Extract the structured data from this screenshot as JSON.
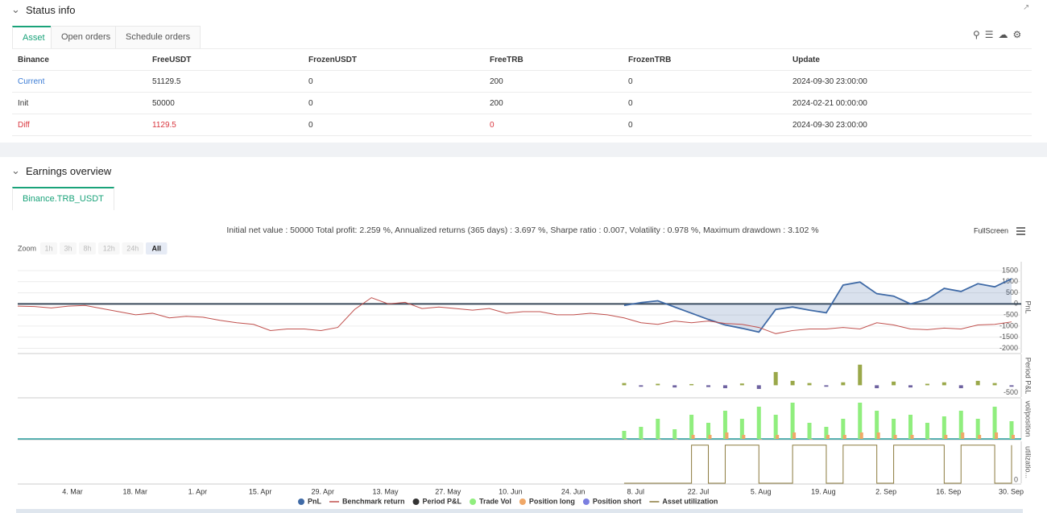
{
  "status_info": {
    "title": "Status info",
    "tabs": [
      "Asset",
      "Open orders",
      "Schedule orders"
    ],
    "table": {
      "header": [
        "Binance",
        "FreeUSDT",
        "FrozenUSDT",
        "FreeTRB",
        "FrozenTRB",
        "Update"
      ],
      "rows": [
        [
          "Current",
          "51129.5",
          "0",
          "200",
          "0",
          "2024-09-30 23:00:00"
        ],
        [
          "Init",
          "50000",
          "0",
          "200",
          "0",
          "2024-02-21 00:00:00"
        ],
        [
          "Diff",
          "1129.5",
          "0",
          "0",
          "0",
          "2024-09-30 23:00:00"
        ]
      ]
    }
  },
  "earnings": {
    "title": "Earnings overview",
    "tab": "Binance.TRB_USDT",
    "summary": "Initial net value : 50000 Total profit: 2.259 %, Annualized returns (365 days) : 3.697 %, Sharpe ratio : 0.007, Volatility : 0.978 %, Maximum drawdown : 3.102 %",
    "fullscreen": "FullScreen",
    "zoom": {
      "label": "Zoom",
      "buttons": [
        "1h",
        "3h",
        "8h",
        "12h",
        "24h",
        "All"
      ]
    },
    "x_labels": [
      "4. Mar",
      "18. Mar",
      "1. Apr",
      "15. Apr",
      "29. Apr",
      "13. May",
      "27. May",
      "10. Jun",
      "24. Jun",
      "8. Jul",
      "22. Jul",
      "5. Aug",
      "19. Aug",
      "2. Sep",
      "16. Sep",
      "30. Sep"
    ],
    "legend": [
      {
        "name": "PnL",
        "color": "#3f6aa6"
      },
      {
        "name": "Benchmark return",
        "color": "#c0504d"
      },
      {
        "name": "Period P&L",
        "color": "#333333"
      },
      {
        "name": "Trade Vol",
        "color": "#90ee7e"
      },
      {
        "name": "Position long",
        "color": "#f0a868"
      },
      {
        "name": "Position short",
        "color": "#7b7fe0"
      },
      {
        "name": "Asset utilization",
        "color": "#8b7a3e"
      }
    ],
    "chart_data": [
      {
        "type": "line",
        "y_label": "PnL",
        "ylim": [
          -2200,
          1900
        ],
        "yticks": [
          1500,
          1000,
          500,
          0,
          -500,
          -1000,
          -1500,
          -2000
        ],
        "series": [
          {
            "color": "#3f6aa6",
            "area": true,
            "values": [
              null,
              null,
              null,
              null,
              null,
              null,
              null,
              null,
              null,
              null,
              null,
              null,
              null,
              null,
              null,
              null,
              null,
              null,
              null,
              null,
              null,
              null,
              null,
              null,
              null,
              null,
              null,
              null,
              null,
              null,
              null,
              null,
              null,
              null,
              null,
              null,
              -70,
              60,
              140,
              -140,
              -420,
              -700,
              -950,
              -1100,
              -1270,
              -250,
              -140,
              -280,
              -400,
              850,
              985,
              460,
              350,
              0,
              210,
              700,
              560,
              910,
              770,
              1130
            ]
          },
          {
            "color": "#c0504d",
            "values": [
              -100,
              -120,
              -180,
              -100,
              -70,
              -210,
              -350,
              -490,
              -420,
              -630,
              -560,
              -600,
              -740,
              -850,
              -920,
              -1200,
              -1130,
              -1130,
              -1200,
              -1060,
              -250,
              280,
              0,
              70,
              -210,
              -140,
              -210,
              -280,
              -210,
              -420,
              -350,
              -350,
              -490,
              -490,
              -420,
              -490,
              -630,
              -850,
              -920,
              -770,
              -850,
              -770,
              -880,
              -920,
              -1060,
              -1340,
              -1200,
              -1130,
              -1130,
              -1060,
              -1130,
              -850,
              -950,
              -1130,
              -1160,
              -1090,
              -1130,
              -950,
              -920,
              -810
            ]
          }
        ]
      },
      {
        "type": "bar",
        "y_label": "Period P&L",
        "ylim": [
          -800,
          2100
        ],
        "yticks": [
          -500
        ],
        "series": [
          {
            "color": "#9aa84a",
            "negative_color": "#6e62a0",
            "values": [
              null,
              null,
              null,
              null,
              null,
              null,
              null,
              null,
              null,
              null,
              null,
              null,
              null,
              null,
              null,
              null,
              null,
              null,
              null,
              null,
              null,
              null,
              null,
              null,
              null,
              null,
              null,
              null,
              null,
              null,
              null,
              null,
              null,
              null,
              null,
              null,
              150,
              -100,
              100,
              -150,
              80,
              -120,
              -200,
              120,
              -250,
              900,
              300,
              150,
              -100,
              200,
              1400,
              -200,
              250,
              -150,
              100,
              200,
              -200,
              300,
              150,
              -100
            ]
          }
        ]
      },
      {
        "type": "bar",
        "y_label": "vol/position",
        "ylim": [
          0,
          50
        ],
        "yticks": [],
        "series": [
          {
            "color": "#90ee7e",
            "values": [
              null,
              null,
              null,
              null,
              null,
              null,
              null,
              null,
              null,
              null,
              null,
              null,
              null,
              null,
              null,
              null,
              null,
              null,
              null,
              null,
              null,
              null,
              null,
              null,
              null,
              null,
              null,
              null,
              null,
              null,
              null,
              null,
              null,
              null,
              null,
              null,
              10,
              15,
              25,
              12,
              30,
              20,
              35,
              25,
              40,
              30,
              45,
              20,
              15,
              25,
              45,
              35,
              25,
              30,
              20,
              28,
              35,
              25,
              40,
              22
            ]
          },
          {
            "color": "#f0a868",
            "values": [
              null,
              null,
              null,
              null,
              null,
              null,
              null,
              null,
              null,
              null,
              null,
              null,
              null,
              null,
              null,
              null,
              null,
              null,
              null,
              null,
              null,
              null,
              null,
              null,
              null,
              null,
              null,
              null,
              null,
              null,
              null,
              null,
              null,
              null,
              null,
              null,
              0,
              0,
              0,
              0,
              5,
              5,
              8,
              5,
              0,
              5,
              8,
              0,
              5,
              5,
              8,
              8,
              5,
              5,
              0,
              5,
              8,
              5,
              8,
              5
            ]
          }
        ]
      },
      {
        "type": "step",
        "y_label": "utilizatio...",
        "ylim": [
          0,
          1.1
        ],
        "yticks": [
          0
        ],
        "series": [
          {
            "color": "#8b7a3e",
            "values": [
              null,
              null,
              null,
              null,
              null,
              null,
              null,
              null,
              null,
              null,
              null,
              null,
              null,
              null,
              null,
              null,
              null,
              null,
              null,
              null,
              null,
              null,
              null,
              null,
              null,
              null,
              null,
              null,
              null,
              null,
              null,
              null,
              null,
              null,
              null,
              null,
              0,
              0,
              0,
              0,
              1,
              0,
              1,
              1,
              0,
              0,
              1,
              1,
              0,
              1,
              1,
              0,
              1,
              1,
              1,
              0,
              1,
              1,
              0,
              1
            ]
          }
        ]
      }
    ]
  }
}
